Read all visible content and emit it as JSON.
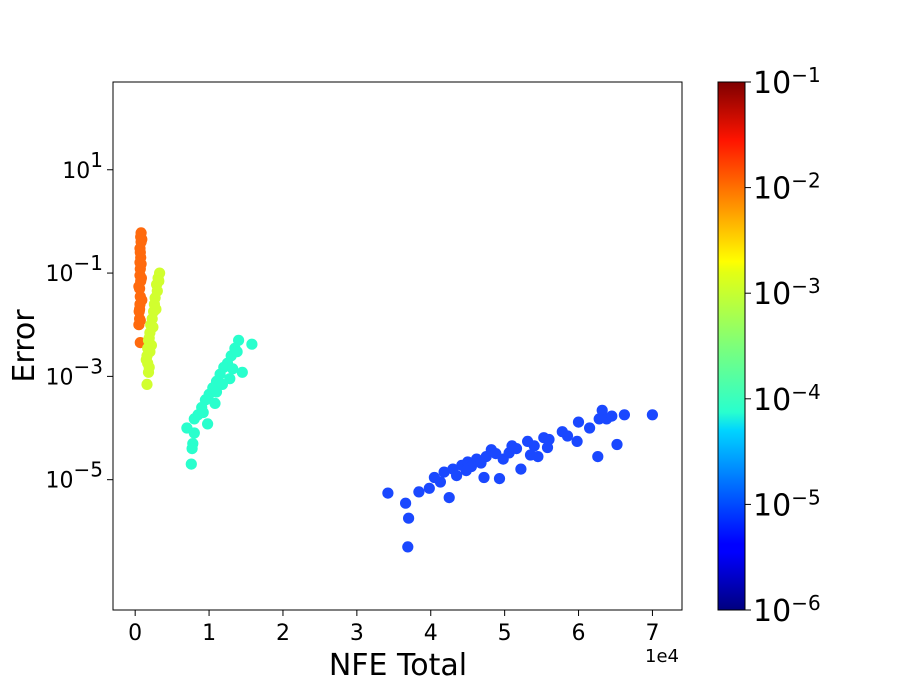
{
  "chart_data": {
    "type": "scatter",
    "title": "",
    "xlabel": "NFE Total",
    "ylabel": "Error",
    "x_offset_text": "1e4",
    "xlim": [
      -3000,
      74000
    ],
    "ylim": [
      3e-08,
      500
    ],
    "yscale": "log",
    "x_ticks": [
      {
        "value": 0,
        "label": "0"
      },
      {
        "value": 10000,
        "label": "1"
      },
      {
        "value": 20000,
        "label": "2"
      },
      {
        "value": 30000,
        "label": "3"
      },
      {
        "value": 40000,
        "label": "4"
      },
      {
        "value": 50000,
        "label": "5"
      },
      {
        "value": 60000,
        "label": "6"
      },
      {
        "value": 70000,
        "label": "7"
      }
    ],
    "y_ticks": [
      {
        "value": 1e-05,
        "base": "10",
        "exp": "−5"
      },
      {
        "value": 0.001,
        "base": "10",
        "exp": "−3"
      },
      {
        "value": 0.1,
        "base": "10",
        "exp": "−1"
      },
      {
        "value": 10,
        "base": "10",
        "exp": "1"
      }
    ],
    "grid": false,
    "colorbar": {
      "colormap": "jet",
      "scale": "log",
      "range": [
        1e-06,
        0.1
      ],
      "ticks": [
        {
          "value": 0.1,
          "base": "10",
          "exp": "−1"
        },
        {
          "value": 0.01,
          "base": "10",
          "exp": "−2"
        },
        {
          "value": 0.001,
          "base": "10",
          "exp": "−3"
        },
        {
          "value": 0.0001,
          "base": "10",
          "exp": "−4"
        },
        {
          "value": 1e-05,
          "base": "10",
          "exp": "−5"
        },
        {
          "value": 1e-06,
          "base": "10",
          "exp": "−6"
        }
      ]
    },
    "series": [
      {
        "color": "#ff6a0d",
        "points": [
          [
            700,
            0.0045
          ],
          [
            800,
            0.6
          ],
          [
            900,
            0.45
          ],
          [
            650,
            0.3
          ],
          [
            750,
            0.2
          ],
          [
            800,
            0.15
          ],
          [
            700,
            0.12
          ],
          [
            650,
            0.09
          ],
          [
            750,
            0.07
          ],
          [
            600,
            0.05
          ],
          [
            700,
            0.035
          ],
          [
            650,
            0.025
          ],
          [
            550,
            0.018
          ],
          [
            600,
            0.013
          ],
          [
            500,
            0.01
          ],
          [
            800,
            0.4
          ],
          [
            700,
            0.25
          ],
          [
            850,
            0.08
          ],
          [
            500,
            0.055
          ],
          [
            900,
            0.03
          ],
          [
            600,
            0.02
          ],
          [
            700,
            0.012
          ],
          [
            750,
            0.5
          ],
          [
            650,
            0.16
          ]
        ]
      },
      {
        "color": "#d1ff2f",
        "points": [
          [
            3300,
            0.1
          ],
          [
            3100,
            0.08
          ],
          [
            2900,
            0.06
          ],
          [
            3000,
            0.045
          ],
          [
            2700,
            0.033
          ],
          [
            2600,
            0.025
          ],
          [
            2500,
            0.018
          ],
          [
            2300,
            0.013
          ],
          [
            2100,
            0.01
          ],
          [
            2000,
            0.007
          ],
          [
            1800,
            0.005
          ],
          [
            1700,
            0.0035
          ],
          [
            1600,
            0.0025
          ],
          [
            1700,
            0.0018
          ],
          [
            1800,
            0.0012
          ],
          [
            1600,
            0.0007
          ],
          [
            1900,
            0.0015
          ],
          [
            2200,
            0.004
          ],
          [
            2400,
            0.009
          ],
          [
            2800,
            0.02
          ],
          [
            2000,
            0.003
          ],
          [
            3200,
            0.07
          ],
          [
            1500,
            0.0021
          ],
          [
            1900,
            0.0055
          ]
        ]
      },
      {
        "color": "#29ffcd",
        "points": [
          [
            14000,
            0.005
          ],
          [
            15800,
            0.0042
          ],
          [
            13500,
            0.0035
          ],
          [
            13000,
            0.0025
          ],
          [
            12500,
            0.0018
          ],
          [
            14500,
            0.0012
          ],
          [
            12000,
            0.0015
          ],
          [
            11500,
            0.0011
          ],
          [
            11000,
            0.0008
          ],
          [
            10500,
            0.0006
          ],
          [
            10000,
            0.00045
          ],
          [
            9500,
            0.00035
          ],
          [
            9000,
            0.00025
          ],
          [
            8500,
            0.00018
          ],
          [
            8000,
            0.00015
          ],
          [
            7000,
            0.0001
          ],
          [
            8000,
            8e-05
          ],
          [
            7800,
            5e-05
          ],
          [
            7700,
            4e-05
          ],
          [
            7600,
            2e-05
          ],
          [
            11000,
            0.0005
          ],
          [
            12800,
            0.0009
          ],
          [
            13200,
            0.0014
          ],
          [
            9800,
            0.00012
          ],
          [
            10800,
            0.0003
          ],
          [
            11800,
            0.0007
          ],
          [
            9200,
            0.0002
          ],
          [
            13800,
            0.003
          ]
        ]
      },
      {
        "color": "#1a48ff",
        "points": [
          [
            34200,
            5.5e-06
          ],
          [
            36600,
            3.5e-06
          ],
          [
            37000,
            1.8e-06
          ],
          [
            36900,
            5e-07
          ],
          [
            38400,
            5.8e-06
          ],
          [
            39800,
            6.8e-06
          ],
          [
            40500,
            1.1e-05
          ],
          [
            41300,
            9e-06
          ],
          [
            41800,
            1.4e-05
          ],
          [
            42500,
            4.5e-06
          ],
          [
            43000,
            1.6e-05
          ],
          [
            43500,
            1.2e-05
          ],
          [
            44200,
            1.9e-05
          ],
          [
            45000,
            2.2e-05
          ],
          [
            45500,
            1.8e-05
          ],
          [
            46200,
            2.5e-05
          ],
          [
            47200,
            1.1e-05
          ],
          [
            47500,
            2.8e-05
          ],
          [
            48200,
            3.8e-05
          ],
          [
            48800,
            3.2e-05
          ],
          [
            49300,
            1.05e-05
          ],
          [
            49800,
            2.5e-05
          ],
          [
            50600,
            3.3e-05
          ],
          [
            51000,
            4.5e-05
          ],
          [
            51600,
            4e-05
          ],
          [
            52200,
            1.6e-05
          ],
          [
            53100,
            5.5e-05
          ],
          [
            54000,
            4.5e-05
          ],
          [
            54500,
            2.8e-05
          ],
          [
            55300,
            6.5e-05
          ],
          [
            55800,
            4.2e-05
          ],
          [
            57800,
            8.5e-05
          ],
          [
            58500,
            7e-05
          ],
          [
            59800,
            5.5e-05
          ],
          [
            60000,
            0.00013
          ],
          [
            62600,
            2.8e-05
          ],
          [
            62800,
            0.00015
          ],
          [
            63200,
            0.00022
          ],
          [
            63800,
            0.00015
          ],
          [
            64500,
            0.00017
          ],
          [
            65200,
            4.8e-05
          ],
          [
            66200,
            0.00018
          ],
          [
            70000,
            0.00018
          ],
          [
            56000,
            6e-05
          ],
          [
            61500,
            0.0001
          ],
          [
            44800,
            1.5e-05
          ],
          [
            46800,
            2.1e-05
          ],
          [
            53500,
            3e-05
          ]
        ]
      }
    ]
  }
}
